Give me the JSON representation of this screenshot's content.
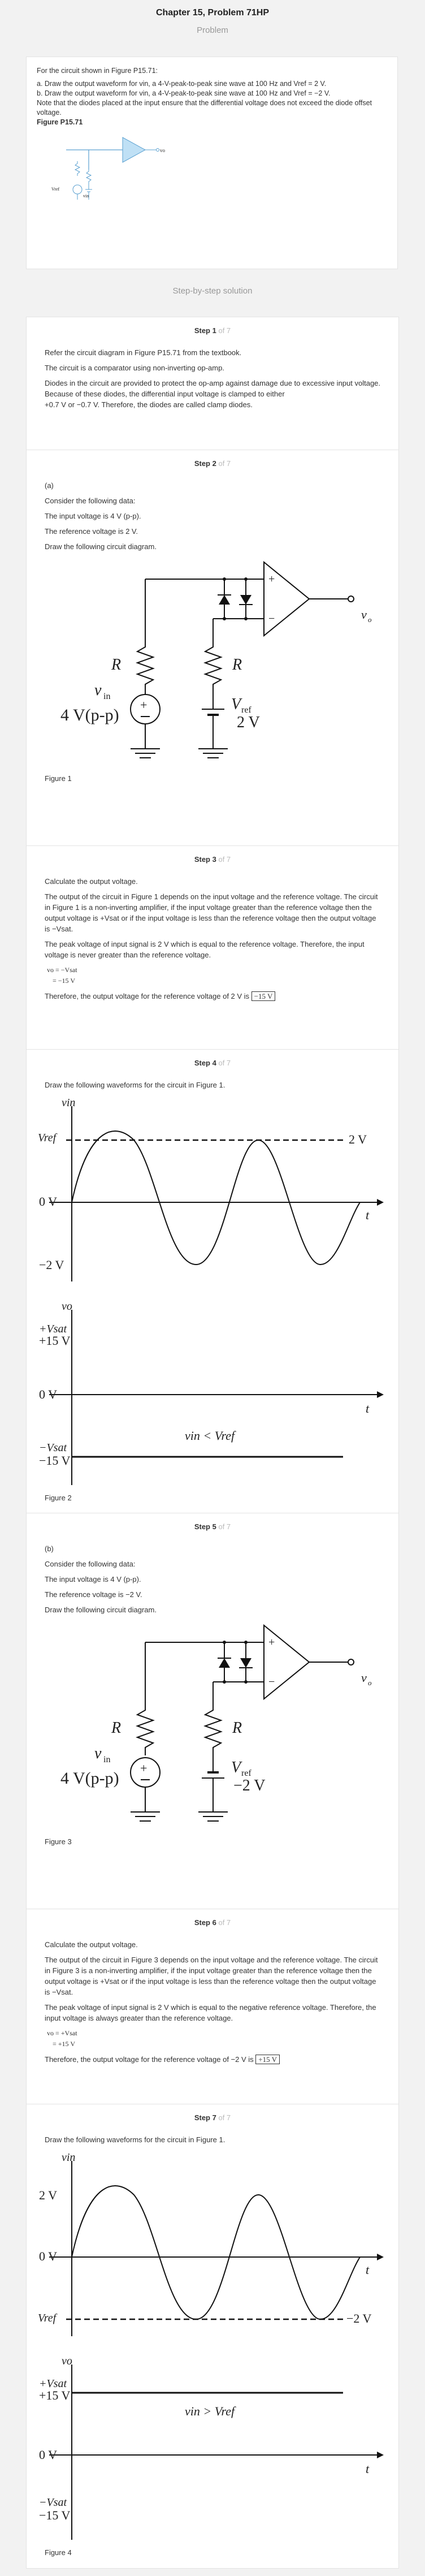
{
  "header": {
    "title": "Chapter 15, Problem 71HP",
    "subtitle": "Problem"
  },
  "problem": {
    "intro": "For the circuit shown in Figure P15.71:",
    "part_a": "a. Draw the output waveform for vin, a 4-V-peak-to-peak sine wave at 100 Hz and Vref = 2 V.",
    "part_b": "b. Draw the output waveform for vin, a 4-V-peak-to-peak sine wave at 100 Hz and Vref = −2 V.",
    "note": "Note that the diodes placed at the input ensure that the differential voltage does not exceed the diode offset voltage.",
    "figure_label": "Figure P15.71",
    "fig_vref": "Vref",
    "fig_vin": "vin",
    "fig_vo": "vo"
  },
  "solution_label": "Step-by-step solution",
  "steps": [
    {
      "num": "Step 1",
      "of": "of 7",
      "lines": [
        "Refer the circuit diagram in Figure P15.71 from the textbook.",
        "The circuit is a comparator using non-inverting op-amp.",
        "Diodes in the circuit are provided to protect the op-amp against damage due to excessive input voltage. Because of these diodes, the differential input voltage is clamped to either",
        "+0.7 V or −0.7 V. Therefore, the diodes are called clamp diodes."
      ]
    },
    {
      "num": "Step 2",
      "of": "of 7",
      "part": "(a)",
      "lines": [
        "Consider the following data:",
        "The input voltage is  4 V (p-p).",
        "The reference voltage is  2 V.",
        "Draw the following circuit diagram."
      ],
      "circuit": {
        "R": "R",
        "vin": "v",
        "vin_sub": "in",
        "vin_value": "4 V(p-p)",
        "vref": "V",
        "vref_sub": "ref",
        "vref_value": "2 V",
        "vo": "v",
        "vo_sub": "o",
        "plus": "+",
        "minus": "−"
      },
      "caption": "Figure 1"
    },
    {
      "num": "Step 3",
      "of": "of 7",
      "lines": [
        "Calculate the output voltage.",
        "The output of the circuit in Figure 1 depends on the input voltage and the reference voltage. The circuit in Figure 1 is a non-inverting amplifier, if the input voltage greater than the reference voltage then the output voltage is +Vsat or if the input voltage is less than the reference voltage then the output voltage is −Vsat.",
        "The peak voltage of input signal is  2 V which is equal to the reference voltage. Therefore, the input voltage is never greater than the reference voltage."
      ],
      "eq1": "vo = −Vsat",
      "eq2": "= −15 V",
      "conclusion": "Therefore, the output voltage for the reference voltage of  2 V is ",
      "answer": "−15 V"
    },
    {
      "num": "Step 4",
      "of": "of 7",
      "lines": [
        "Draw the following waveforms for the circuit in Figure 1."
      ],
      "wave": {
        "v_in": "vin",
        "vref": "Vref",
        "vref_right": "2 V",
        "zero": "0 V",
        "neg2": "−2 V",
        "t": "t",
        "vo": "vo",
        "plus_vsat": "+Vsat",
        "p15": "+15 V",
        "minus_vsat": "−Vsat",
        "m15": "−15 V",
        "annot": "vin < Vref"
      },
      "caption": "Figure 2"
    },
    {
      "num": "Step 5",
      "of": "of 7",
      "part": "(b)",
      "lines": [
        "Consider the following data:",
        "The input voltage is  4 V (p-p).",
        "The reference voltage is  −2 V.",
        "Draw the following circuit diagram."
      ],
      "circuit": {
        "vref_value": "−2 V"
      },
      "caption": "Figure 3"
    },
    {
      "num": "Step 6",
      "of": "of 7",
      "lines": [
        "Calculate the output voltage.",
        "The output of the circuit in Figure 3 depends on the input voltage and the reference voltage. The circuit in Figure 3 is a non-inverting amplifier, if the input voltage greater than the reference voltage then the output voltage is +Vsat or if the input voltage is less than the reference voltage then the output voltage is −Vsat.",
        "The peak voltage of input signal is  2 V which is equal to the negative reference voltage. Therefore, the input voltage is always greater than the reference voltage."
      ],
      "eq1": "vo = +Vsat",
      "eq2": "= +15 V",
      "conclusion": "Therefore, the output voltage for the reference voltage of  −2 V is ",
      "answer": "+15 V"
    },
    {
      "num": "Step 7",
      "of": "of 7",
      "lines": [
        "Draw the following waveforms for the circuit in Figure 1."
      ],
      "wave": {
        "vin_top": "2 V",
        "zero": "0 V",
        "vref_right": "−2 V",
        "annot": "vin > Vref"
      },
      "caption": "Figure 4"
    }
  ]
}
